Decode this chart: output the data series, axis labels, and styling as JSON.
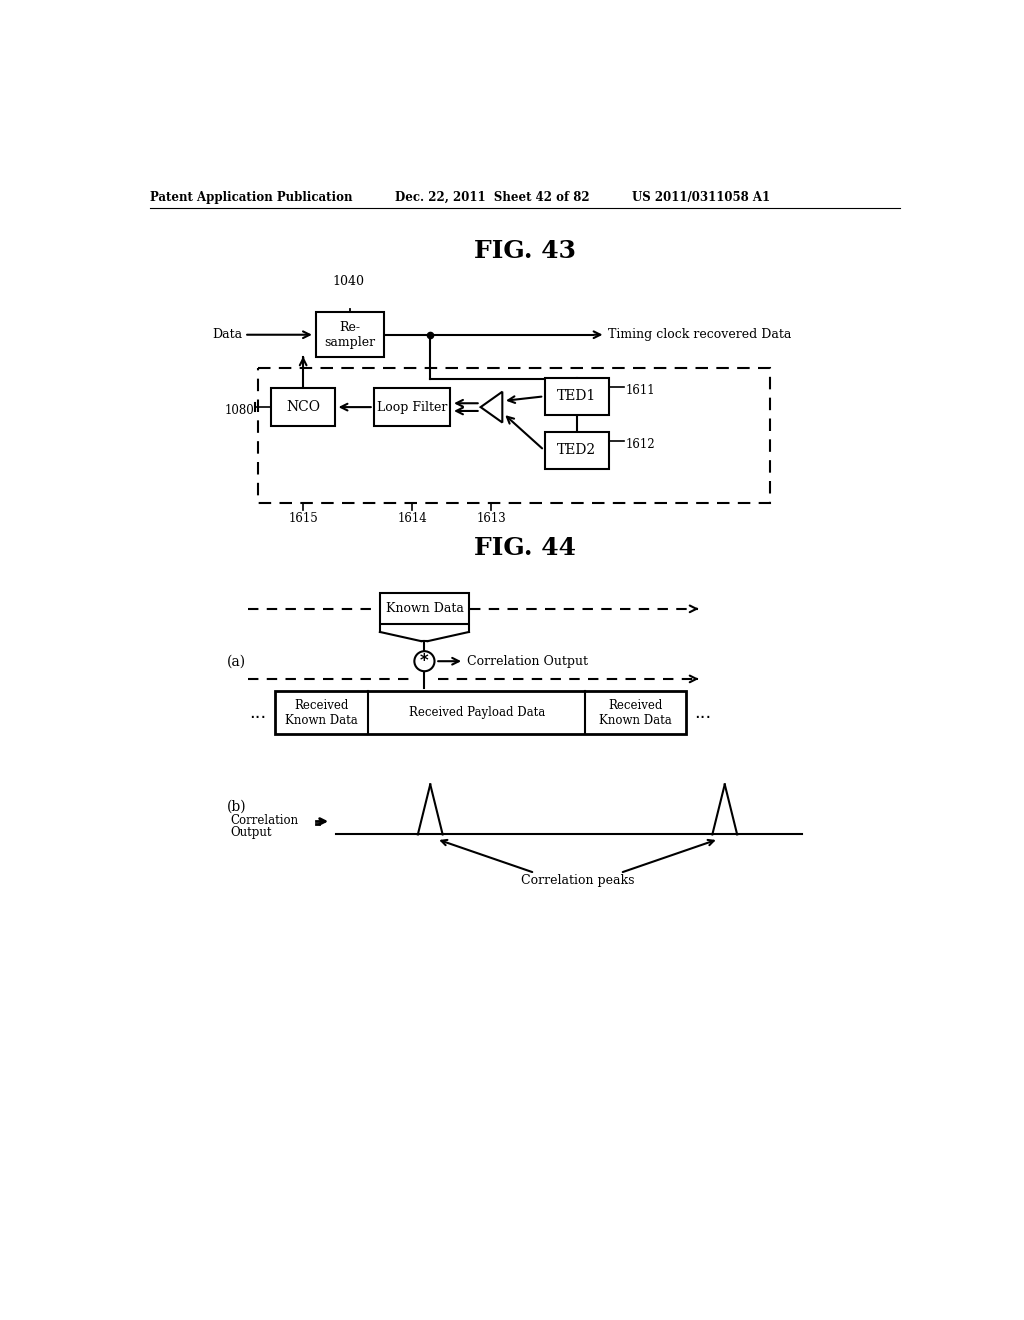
{
  "bg_color": "#ffffff",
  "header_left": "Patent Application Publication",
  "header_mid": "Dec. 22, 2011  Sheet 42 of 82",
  "header_right": "US 2011/0311058 A1",
  "fig43_title": "FIG. 43",
  "fig44_title": "FIG. 44",
  "text_color": "#000000"
}
